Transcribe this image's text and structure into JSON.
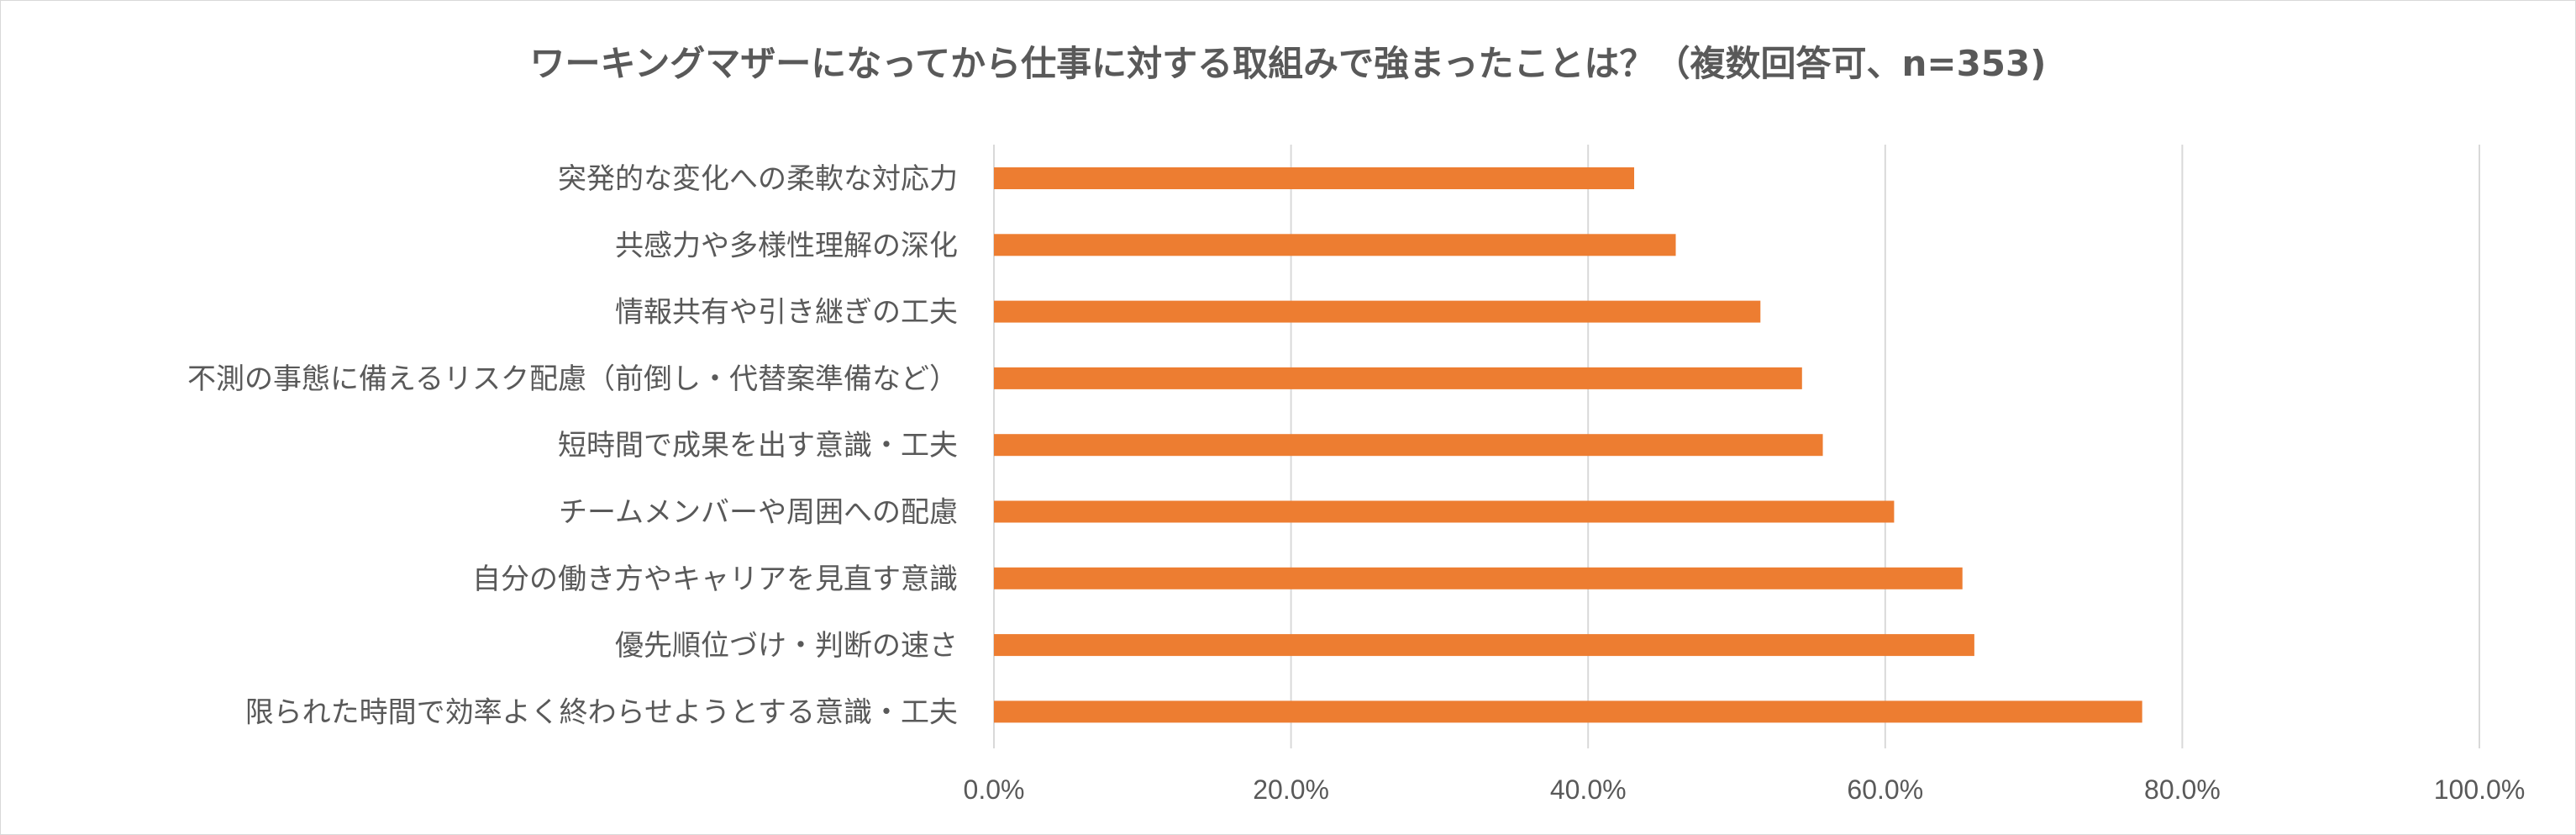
{
  "chart_data": {
    "type": "bar",
    "orientation": "horizontal",
    "title": "ワーキングマザーになってから仕事に対する取組みで強まったことは？（複数回答可、n=353)",
    "xlabel": "",
    "ylabel": "",
    "xlim": [
      0,
      100
    ],
    "x_ticks": [
      0,
      20,
      40,
      60,
      80,
      100
    ],
    "x_tick_labels": [
      "0.0%",
      "20.0%",
      "40.0%",
      "60.0%",
      "80.0%",
      "100.0%"
    ],
    "grid": true,
    "legend": "none",
    "bar_color": "#ED7D31",
    "categories": [
      "突発的な変化への柔軟な対応力",
      "共感力や多様性理解の深化",
      "情報共有や引き継ぎの工夫",
      "不測の事態に備えるリスク配慮（前倒し・代替案準備など）",
      "短時間で成果を出す意識・工夫",
      "チームメンバーや周囲への配慮",
      "自分の働き方やキャリアを見直す意識",
      "優先順位づけ・判断の速さ",
      "限られた時間で効率よく終わらせようとする意識・工夫"
    ],
    "values": [
      43.1,
      45.9,
      51.6,
      54.4,
      55.8,
      60.6,
      65.2,
      66.0,
      77.3
    ]
  }
}
